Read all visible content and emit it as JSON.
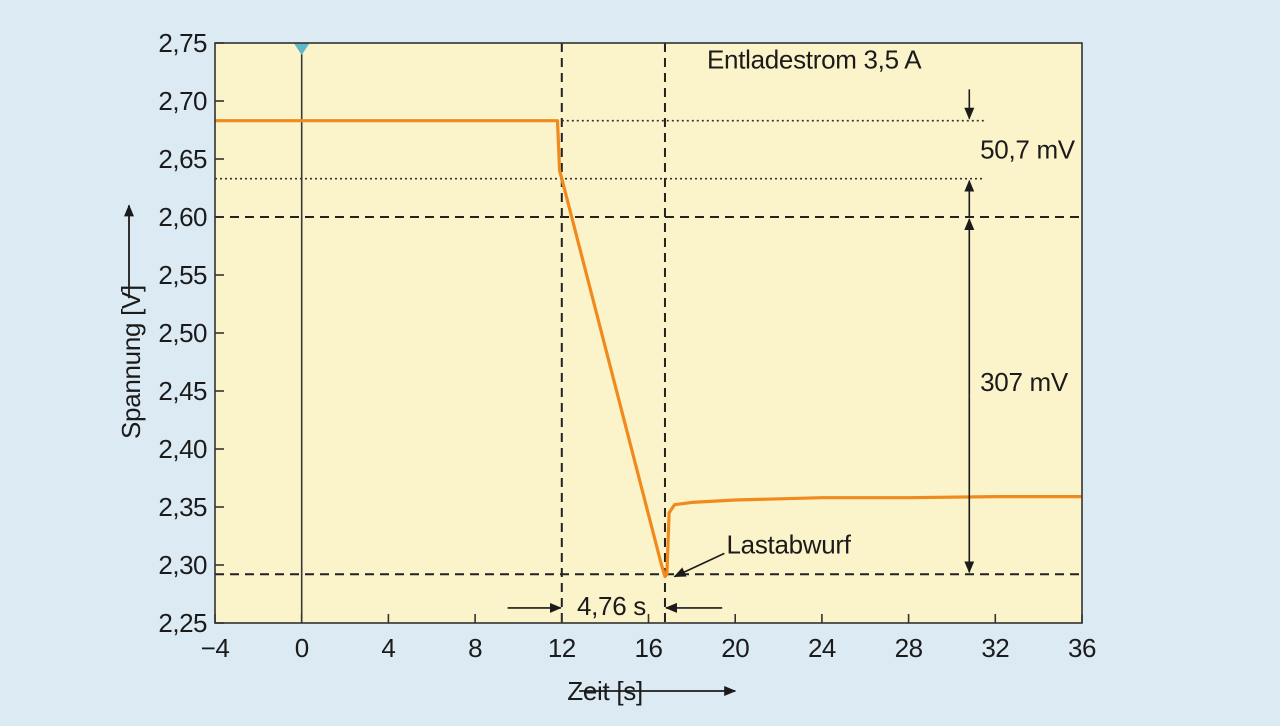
{
  "chart_data": {
    "type": "line",
    "title": "",
    "xlabel": "Zeit [s]",
    "ylabel": "Spannung [V]",
    "xlim": [
      -4,
      36
    ],
    "ylim": [
      2.25,
      2.75
    ],
    "x_ticks": [
      -4,
      0,
      4,
      8,
      12,
      16,
      20,
      24,
      28,
      32,
      36
    ],
    "x_tick_labels": [
      "−4",
      "0",
      "4",
      "8",
      "12",
      "16",
      "20",
      "24",
      "28",
      "32",
      "36"
    ],
    "y_ticks": [
      2.25,
      2.3,
      2.35,
      2.4,
      2.45,
      2.5,
      2.55,
      2.6,
      2.65,
      2.7,
      2.75
    ],
    "y_tick_labels": [
      "2,25",
      "2,30",
      "2,35",
      "2,40",
      "2,45",
      "2,50",
      "2,55",
      "2,60",
      "2,65",
      "2,70",
      "2,75"
    ],
    "grid": false,
    "background_color": "#fbf3c9",
    "line_color": "#f08a1c",
    "series": [
      {
        "x": [
          -4,
          11.8,
          11.9,
          12.0,
          16.6,
          16.76,
          16.85,
          16.95,
          17.2,
          18.0,
          20.0,
          24.0,
          28.0,
          32.0,
          36.0
        ],
        "y": [
          2.683,
          2.683,
          2.64,
          2.633,
          2.3,
          2.29,
          2.292,
          2.345,
          2.352,
          2.354,
          2.356,
          2.358,
          2.358,
          2.359,
          2.359
        ]
      }
    ],
    "reference_lines": {
      "vertical_solid_x": 0,
      "vertical_dashed_x": [
        12,
        16.76
      ],
      "horizontal_dotted_y": [
        2.683,
        2.633
      ],
      "horizontal_dashed_y": [
        2.6,
        2.292
      ]
    },
    "annotations": {
      "current": "Entladestrom 3,5 A",
      "drop_small": "50,7 mV",
      "drop_large": "307 mV",
      "duration": "4,76 s",
      "event": "Lastabwurf"
    }
  }
}
